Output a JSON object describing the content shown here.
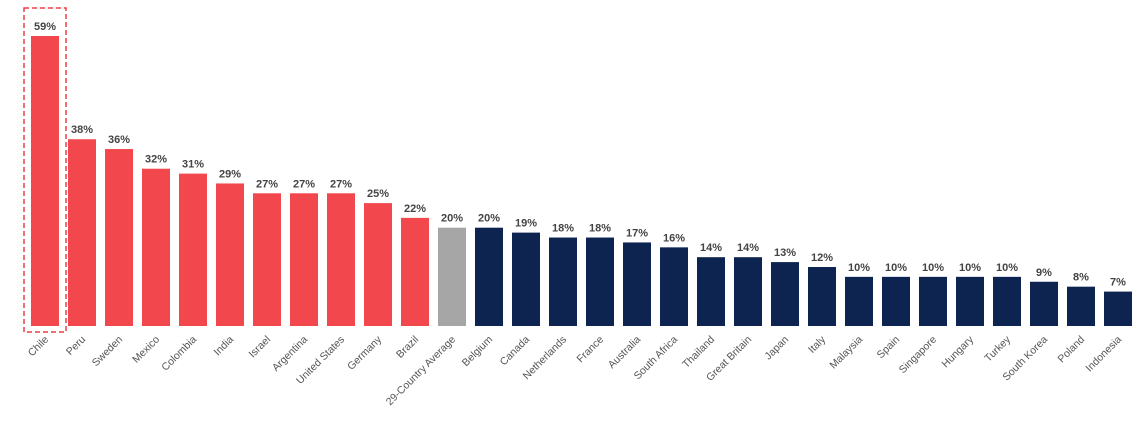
{
  "chart_data": {
    "type": "bar",
    "categories": [
      "Chile",
      "Peru",
      "Sweden",
      "Mexico",
      "Colombia",
      "India",
      "Israel",
      "Argentina",
      "United States",
      "Germany",
      "Brazil",
      "29-Country Average",
      "Belgium",
      "Canada",
      "Netherlands",
      "France",
      "Australia",
      "South Africa",
      "Thailand",
      "Great Britain",
      "Japan",
      "Italy",
      "Malaysia",
      "Spain",
      "Singapore",
      "Hungary",
      "Turkey",
      "South Korea",
      "Poland",
      "Indonesia"
    ],
    "values": [
      59,
      38,
      36,
      32,
      31,
      29,
      27,
      27,
      27,
      25,
      22,
      20,
      20,
      19,
      18,
      18,
      17,
      16,
      14,
      14,
      13,
      12,
      10,
      10,
      10,
      10,
      10,
      9,
      8,
      7
    ],
    "value_labels": [
      "59%",
      "38%",
      "36%",
      "32%",
      "31%",
      "29%",
      "27%",
      "27%",
      "27%",
      "25%",
      "22%",
      "20%",
      "20%",
      "19%",
      "18%",
      "18%",
      "17%",
      "16%",
      "14%",
      "14%",
      "13%",
      "12%",
      "10%",
      "10%",
      "10%",
      "10%",
      "10%",
      "9%",
      "8%",
      "7%"
    ],
    "groups": [
      "above",
      "above",
      "above",
      "above",
      "above",
      "above",
      "above",
      "above",
      "above",
      "above",
      "above",
      "average",
      "below",
      "below",
      "below",
      "below",
      "below",
      "below",
      "below",
      "below",
      "below",
      "below",
      "below",
      "below",
      "below",
      "below",
      "below",
      "below",
      "below",
      "below"
    ],
    "colors": {
      "above": "#f2474d",
      "average": "#a6a6a6",
      "below": "#0d2350",
      "highlight_border": "#ee3e44"
    },
    "highlighted_category": "Chile",
    "title": "",
    "xlabel": "",
    "ylabel": "",
    "ylim": [
      0,
      62
    ],
    "grid": false,
    "legend": "none"
  }
}
